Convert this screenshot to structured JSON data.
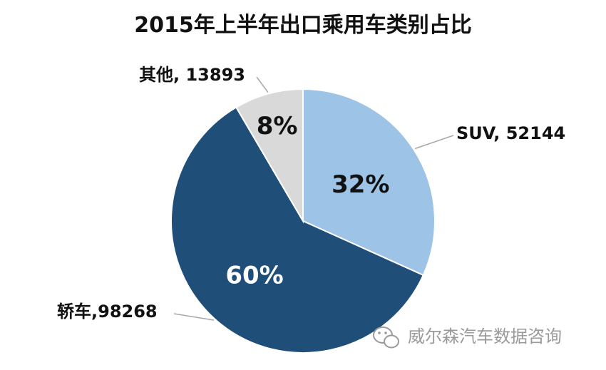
{
  "chart_data": {
    "type": "pie",
    "title": "2015年上半年出口乘用车类别占比",
    "slices": [
      {
        "name": "SUV",
        "value": 52144,
        "percent_label": "32%",
        "outer_label": "SUV, 52144",
        "color": "#9dc3e6",
        "pct_color": "#111111"
      },
      {
        "name": "轿车",
        "value": 98268,
        "percent_label": "60%",
        "outer_label": "轿车,98268",
        "color": "#1f4e79",
        "pct_color": "#ffffff"
      },
      {
        "name": "其他",
        "value": 13893,
        "percent_label": "8%",
        "outer_label": "其他, 13893",
        "color": "#d9d9d9",
        "pct_color": "#111111"
      }
    ],
    "start_angle": "12 o'clock",
    "direction": "clockwise"
  },
  "watermark": {
    "text": "威尔森汽车数据咨询",
    "icon": "wechat-icon"
  }
}
